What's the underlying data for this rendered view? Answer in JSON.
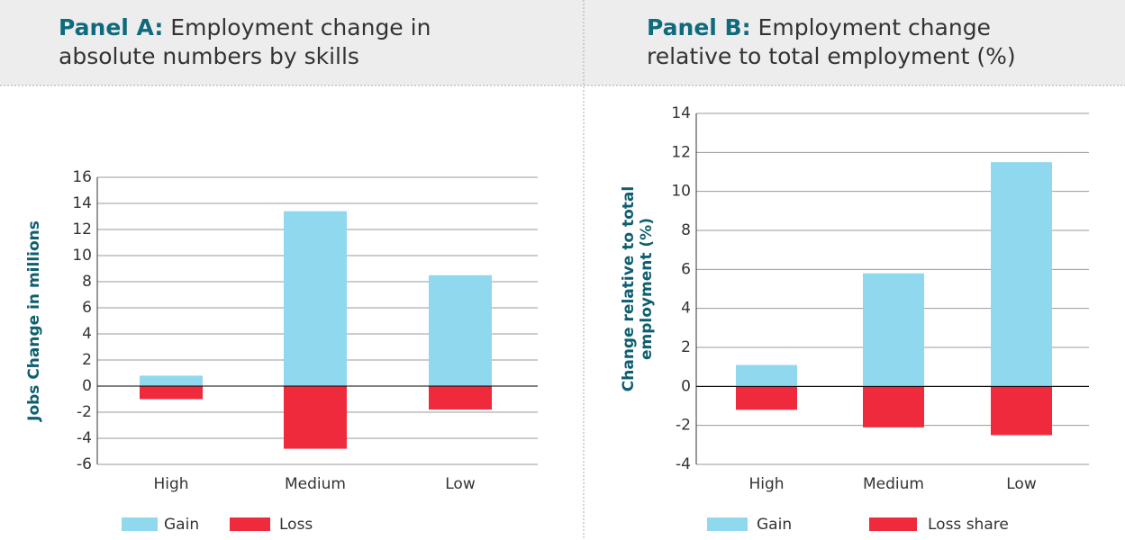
{
  "chart_data": [
    {
      "type": "bar",
      "panel_label": "Panel A:",
      "title": "Employment change in absolute numbers by skills",
      "ylabel": [
        "Jobs Change in millions"
      ],
      "categories": [
        "High",
        "Medium",
        "Low"
      ],
      "series": [
        {
          "name": "Gain",
          "color": "#8fd8ee",
          "values": [
            0.8,
            13.4,
            8.5
          ]
        },
        {
          "name": "Loss",
          "color": "#ee2a3c",
          "values": [
            -1.0,
            -4.8,
            -1.8
          ]
        }
      ],
      "ylim": [
        -6,
        16
      ],
      "yticks": [
        -6,
        -4,
        -2,
        0,
        2,
        4,
        6,
        8,
        10,
        12,
        14,
        16
      ],
      "grid": true
    },
    {
      "type": "bar",
      "panel_label": "Panel B:",
      "title": "Employment change relative to total employment (%)",
      "ylabel": [
        "Change relative to total",
        "employment (%)"
      ],
      "categories": [
        "High",
        "Medium",
        "Low"
      ],
      "series": [
        {
          "name": "Gain",
          "color": "#8fd8ee",
          "values": [
            1.1,
            5.8,
            11.5
          ]
        },
        {
          "name": "Loss share",
          "color": "#ee2a3c",
          "values": [
            -1.2,
            -2.1,
            -2.5
          ]
        }
      ],
      "ylim": [
        -4,
        14
      ],
      "yticks": [
        -4,
        -2,
        0,
        2,
        4,
        6,
        8,
        10,
        12,
        14
      ],
      "grid": true
    }
  ]
}
